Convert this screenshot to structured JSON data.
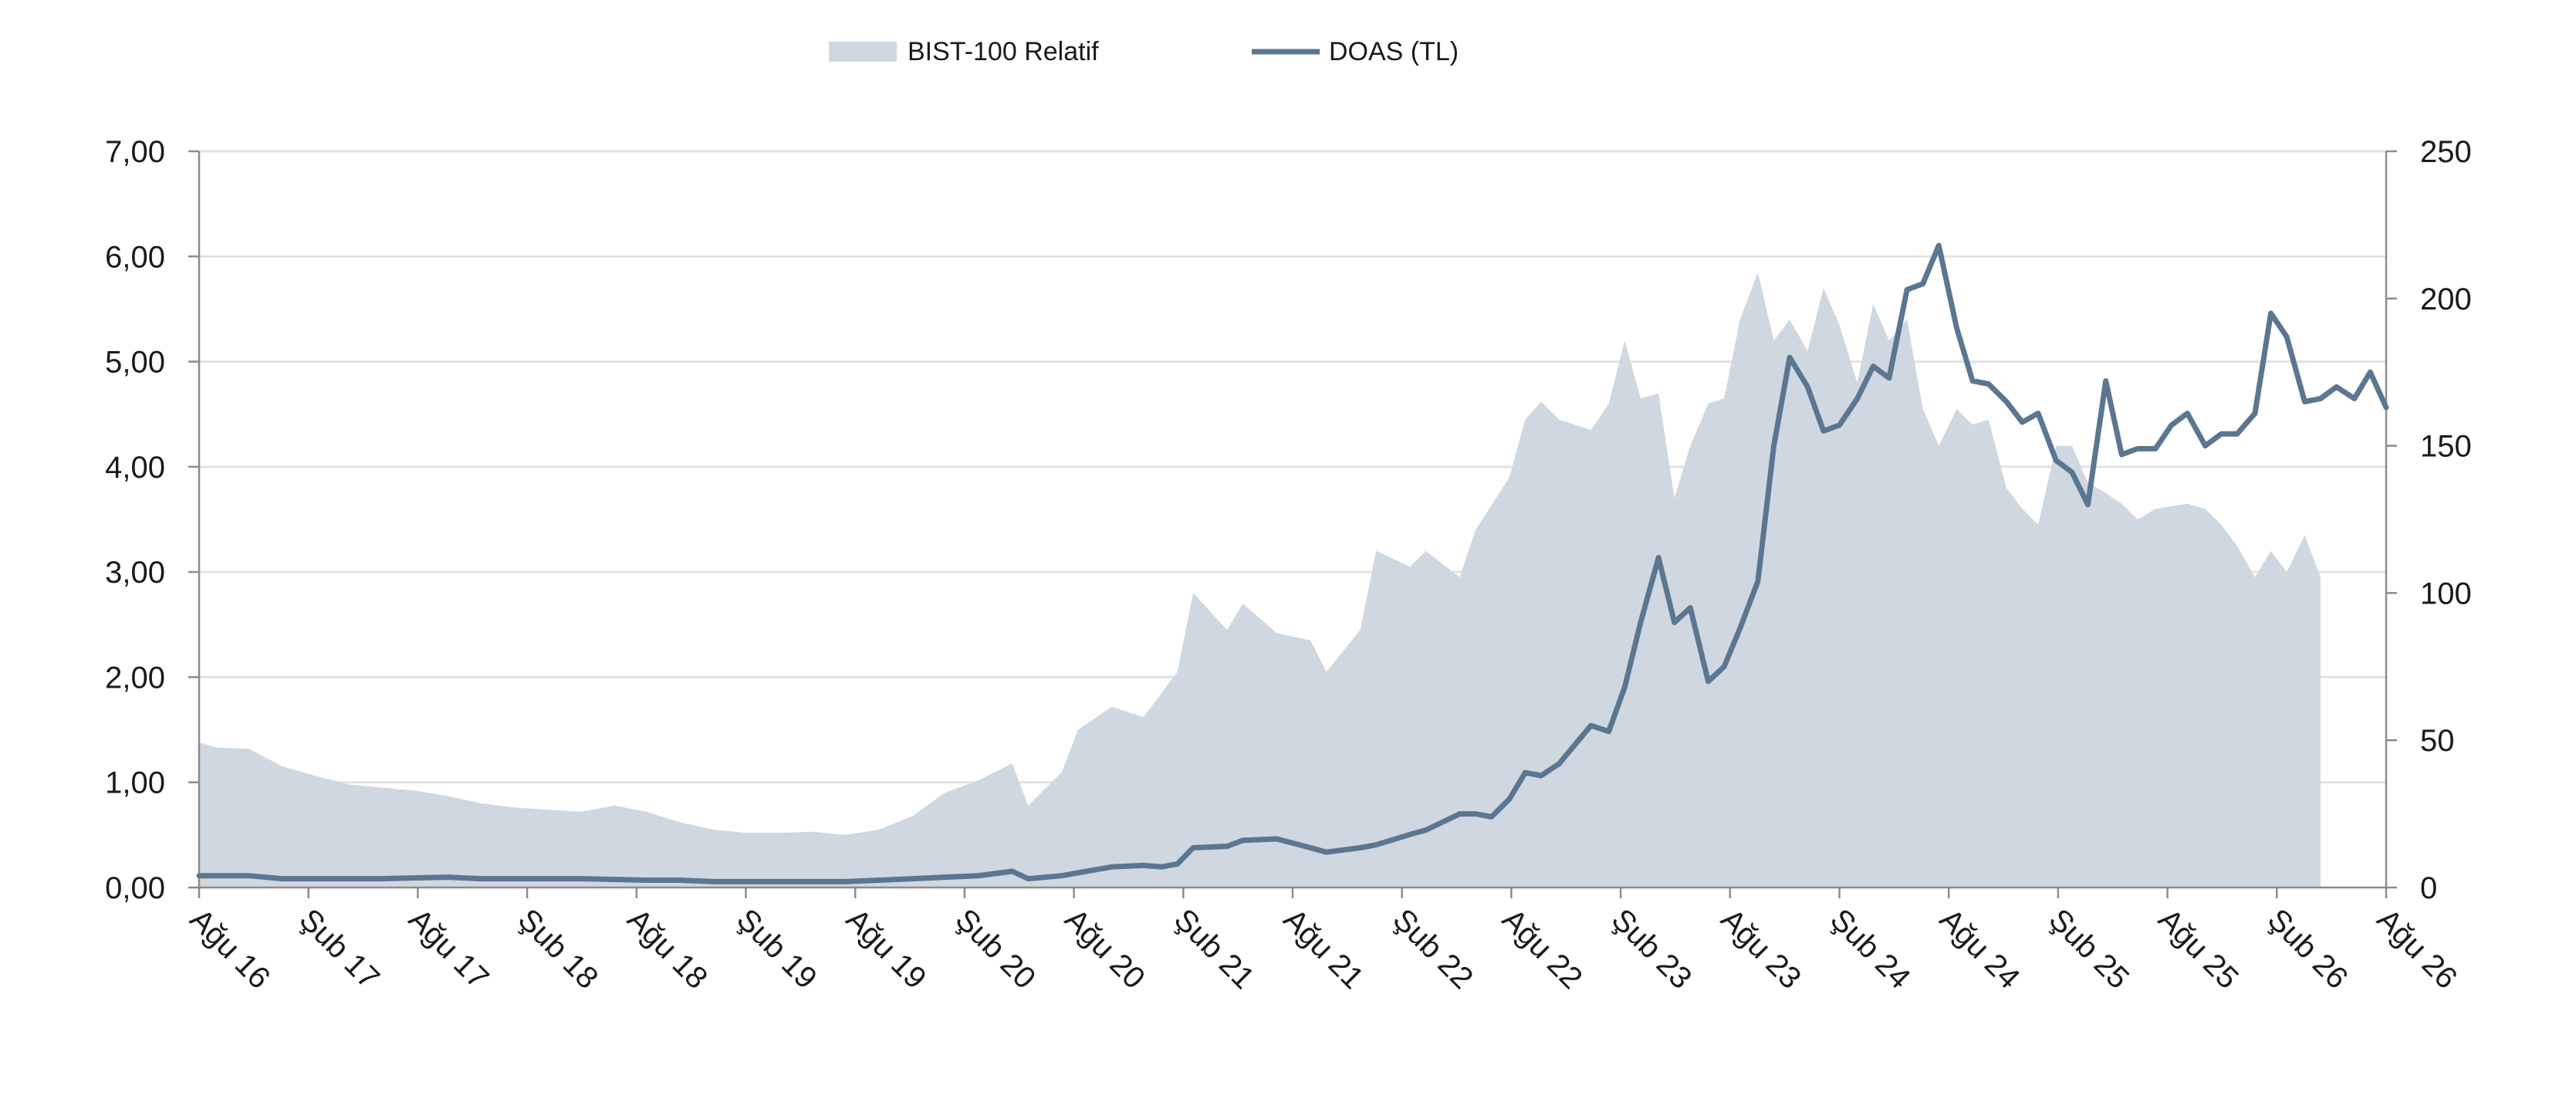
{
  "chart_data": {
    "type": "area+line",
    "title": "",
    "xlabel": "",
    "ylabel_left": "",
    "ylabel_right": "",
    "x_range": [
      "2016-08",
      "2026-08"
    ],
    "x_tick_labels": [
      "Ağu 16",
      "Şub 17",
      "Ağu 17",
      "Şub 18",
      "Ağu 18",
      "Şub 19",
      "Ağu 19",
      "Şub 20",
      "Ağu 20",
      "Şub 21",
      "Ağu 21",
      "Şub 22",
      "Ağu 22",
      "Şub 23",
      "Ağu 23",
      "Şub 24",
      "Ağu 24",
      "Şub 25",
      "Ağu 25",
      "Şub 26",
      "Ağu 26"
    ],
    "y_left": {
      "min": 0,
      "max": 7,
      "ticks": [
        "0,00",
        "1,00",
        "2,00",
        "3,00",
        "4,00",
        "5,00",
        "6,00",
        "7,00"
      ],
      "tick_values": [
        0,
        1,
        2,
        3,
        4,
        5,
        6,
        7
      ]
    },
    "y_right": {
      "min": 0,
      "max": 250,
      "ticks": [
        "0",
        "50",
        "100",
        "150",
        "200",
        "250"
      ],
      "tick_values": [
        0,
        50,
        100,
        150,
        200,
        250
      ]
    },
    "grid": "horizontal",
    "legend": {
      "position": "top",
      "items": [
        "BIST-100 Relatif",
        "DOAS (TL)"
      ]
    },
    "colors": {
      "area": "#cfd8e1",
      "line": "#5b7690",
      "grid": "#e3e3e3",
      "axis": "#8c8c8c"
    },
    "series": [
      {
        "name": "BIST-100 Relatif",
        "kind": "area",
        "axis": "left",
        "points": [
          [
            2016.58,
            1.38
          ],
          [
            2016.67,
            1.33
          ],
          [
            2016.83,
            1.32
          ],
          [
            2017.0,
            1.15
          ],
          [
            2017.17,
            1.06
          ],
          [
            2017.33,
            0.98
          ],
          [
            2017.5,
            0.95
          ],
          [
            2017.67,
            0.92
          ],
          [
            2017.83,
            0.87
          ],
          [
            2018.0,
            0.8
          ],
          [
            2018.17,
            0.76
          ],
          [
            2018.33,
            0.74
          ],
          [
            2018.5,
            0.72
          ],
          [
            2018.67,
            0.78
          ],
          [
            2018.83,
            0.72
          ],
          [
            2019.0,
            0.62
          ],
          [
            2019.17,
            0.55
          ],
          [
            2019.33,
            0.52
          ],
          [
            2019.5,
            0.52
          ],
          [
            2019.67,
            0.53
          ],
          [
            2019.83,
            0.5
          ],
          [
            2020.0,
            0.55
          ],
          [
            2020.17,
            0.68
          ],
          [
            2020.33,
            0.9
          ],
          [
            2020.5,
            1.02
          ],
          [
            2020.67,
            1.18
          ],
          [
            2020.75,
            0.78
          ],
          [
            2020.92,
            1.1
          ],
          [
            2021.0,
            1.5
          ],
          [
            2021.17,
            1.72
          ],
          [
            2021.33,
            1.62
          ],
          [
            2021.5,
            2.05
          ],
          [
            2021.58,
            2.8
          ],
          [
            2021.75,
            2.45
          ],
          [
            2021.83,
            2.7
          ],
          [
            2022.0,
            2.42
          ],
          [
            2022.17,
            2.35
          ],
          [
            2022.25,
            2.05
          ],
          [
            2022.42,
            2.45
          ],
          [
            2022.5,
            3.2
          ],
          [
            2022.67,
            3.05
          ],
          [
            2022.75,
            3.2
          ],
          [
            2022.92,
            2.95
          ],
          [
            2023.0,
            3.4
          ],
          [
            2023.17,
            3.9
          ],
          [
            2023.25,
            4.45
          ],
          [
            2023.33,
            4.62
          ],
          [
            2023.42,
            4.45
          ],
          [
            2023.58,
            4.35
          ],
          [
            2023.67,
            4.6
          ],
          [
            2023.75,
            5.2
          ],
          [
            2023.83,
            4.65
          ],
          [
            2023.92,
            4.7
          ],
          [
            2024.0,
            3.7
          ],
          [
            2024.08,
            4.2
          ],
          [
            2024.17,
            4.6
          ],
          [
            2024.25,
            4.65
          ],
          [
            2024.33,
            5.4
          ],
          [
            2024.42,
            5.85
          ],
          [
            2024.5,
            5.2
          ],
          [
            2024.58,
            5.4
          ],
          [
            2024.67,
            5.1
          ],
          [
            2024.75,
            5.7
          ],
          [
            2024.83,
            5.35
          ],
          [
            2024.92,
            4.8
          ],
          [
            2025.0,
            5.55
          ],
          [
            2025.08,
            5.2
          ],
          [
            2025.17,
            5.4
          ],
          [
            2025.25,
            4.55
          ],
          [
            2025.33,
            4.2
          ],
          [
            2025.42,
            4.55
          ],
          [
            2025.5,
            4.4
          ],
          [
            2025.58,
            4.45
          ],
          [
            2025.67,
            3.8
          ],
          [
            2025.75,
            3.6
          ],
          [
            2025.83,
            3.45
          ],
          [
            2025.92,
            4.2
          ],
          [
            2026.0,
            4.2
          ],
          [
            2026.08,
            3.85
          ],
          [
            2026.17,
            3.75
          ],
          [
            2026.25,
            3.65
          ],
          [
            2026.33,
            3.5
          ],
          [
            2026.42,
            3.6
          ],
          [
            2026.58,
            3.65
          ],
          [
            2026.67,
            3.6
          ],
          [
            2026.75,
            3.45
          ],
          [
            2026.83,
            3.25
          ],
          [
            2026.92,
            2.95
          ],
          [
            2027.0,
            3.2
          ],
          [
            2027.08,
            3.0
          ],
          [
            2027.17,
            3.35
          ],
          [
            2027.25,
            2.95
          ]
        ]
      },
      {
        "name": "DOAS (TL)",
        "kind": "line",
        "axis": "right",
        "points": [
          [
            2016.58,
            4
          ],
          [
            2016.83,
            4
          ],
          [
            2017.0,
            3
          ],
          [
            2017.33,
            3
          ],
          [
            2017.5,
            3
          ],
          [
            2017.83,
            3.5
          ],
          [
            2018.0,
            3
          ],
          [
            2018.33,
            3
          ],
          [
            2018.5,
            3
          ],
          [
            2018.83,
            2.5
          ],
          [
            2019.0,
            2.5
          ],
          [
            2019.17,
            2
          ],
          [
            2019.5,
            2
          ],
          [
            2019.83,
            2
          ],
          [
            2020.0,
            2.5
          ],
          [
            2020.17,
            3
          ],
          [
            2020.33,
            3.5
          ],
          [
            2020.5,
            4
          ],
          [
            2020.67,
            5.5
          ],
          [
            2020.75,
            3
          ],
          [
            2020.92,
            4
          ],
          [
            2021.0,
            5
          ],
          [
            2021.17,
            7
          ],
          [
            2021.33,
            7.5
          ],
          [
            2021.42,
            7
          ],
          [
            2021.5,
            8
          ],
          [
            2021.58,
            13.5
          ],
          [
            2021.75,
            14
          ],
          [
            2021.83,
            16
          ],
          [
            2022.0,
            16.5
          ],
          [
            2022.17,
            13.5
          ],
          [
            2022.25,
            12
          ],
          [
            2022.42,
            13.5
          ],
          [
            2022.5,
            14.5
          ],
          [
            2022.67,
            18
          ],
          [
            2022.75,
            19.5
          ],
          [
            2022.92,
            25
          ],
          [
            2023.0,
            25
          ],
          [
            2023.08,
            24
          ],
          [
            2023.17,
            30
          ],
          [
            2023.25,
            39
          ],
          [
            2023.33,
            38
          ],
          [
            2023.42,
            42
          ],
          [
            2023.58,
            55
          ],
          [
            2023.67,
            53
          ],
          [
            2023.75,
            68
          ],
          [
            2023.83,
            90
          ],
          [
            2023.92,
            112
          ],
          [
            2024.0,
            90
          ],
          [
            2024.08,
            95
          ],
          [
            2024.17,
            70
          ],
          [
            2024.25,
            75
          ],
          [
            2024.33,
            88
          ],
          [
            2024.42,
            104
          ],
          [
            2024.5,
            150
          ],
          [
            2024.58,
            180
          ],
          [
            2024.67,
            170
          ],
          [
            2024.75,
            155
          ],
          [
            2024.83,
            157
          ],
          [
            2024.92,
            166
          ],
          [
            2025.0,
            177
          ],
          [
            2025.08,
            173
          ],
          [
            2025.17,
            203
          ],
          [
            2025.25,
            205
          ],
          [
            2025.33,
            218
          ],
          [
            2025.42,
            190
          ],
          [
            2025.5,
            172
          ],
          [
            2025.58,
            171
          ],
          [
            2025.67,
            165
          ],
          [
            2025.75,
            158
          ],
          [
            2025.83,
            161
          ],
          [
            2025.92,
            145
          ],
          [
            2026.0,
            141
          ],
          [
            2026.08,
            130
          ],
          [
            2026.17,
            172
          ],
          [
            2026.25,
            147
          ],
          [
            2026.33,
            149
          ],
          [
            2026.42,
            149
          ],
          [
            2026.5,
            157
          ],
          [
            2026.58,
            161
          ],
          [
            2026.67,
            150
          ],
          [
            2026.75,
            154
          ],
          [
            2026.83,
            154
          ],
          [
            2026.92,
            161
          ],
          [
            2027.0,
            195
          ],
          [
            2027.08,
            187
          ],
          [
            2027.17,
            165
          ],
          [
            2027.25,
            166
          ],
          [
            2027.33,
            170
          ],
          [
            2027.42,
            166
          ],
          [
            2027.5,
            175
          ],
          [
            2027.58,
            163
          ]
        ]
      }
    ]
  }
}
